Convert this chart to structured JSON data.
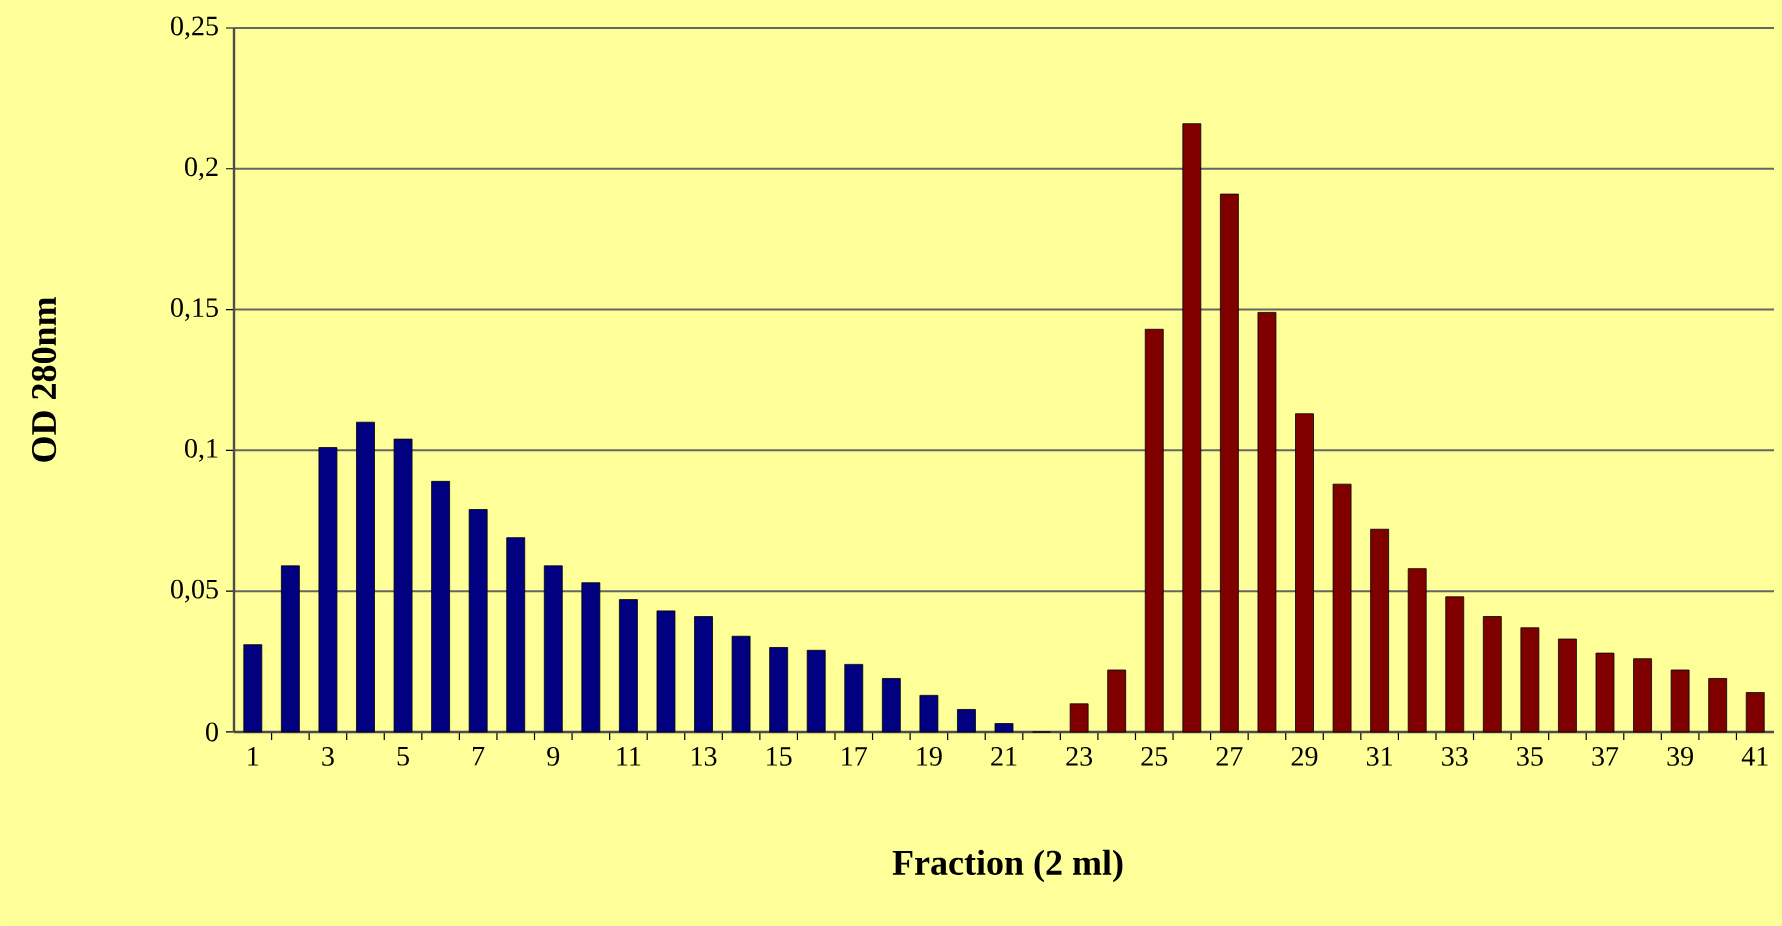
{
  "chart_data": {
    "type": "bar",
    "xlabel": "Fraction (2 ml)",
    "ylabel": "OD 280nm",
    "categories": [
      "1",
      null,
      "3",
      null,
      "5",
      null,
      "7",
      null,
      "9",
      null,
      "11",
      null,
      "13",
      null,
      "15",
      null,
      "17",
      null,
      "19",
      null,
      "21",
      null,
      "23",
      null,
      "25",
      null,
      "27",
      null,
      "29",
      null,
      "31",
      null,
      "33",
      null,
      "35",
      null,
      "37",
      null,
      "39",
      null,
      "41"
    ],
    "values": [
      0.031,
      0.059,
      0.101,
      0.11,
      0.104,
      0.089,
      0.079,
      0.069,
      0.059,
      0.053,
      0.047,
      0.043,
      0.041,
      0.034,
      0.03,
      0.029,
      0.024,
      0.019,
      0.013,
      0.008,
      0.003,
      0,
      0.01,
      0.022,
      0.143,
      0.216,
      0.191,
      0.149,
      0.113,
      0.088,
      0.072,
      0.058,
      0.048,
      0.041,
      0.037,
      0.033,
      0.028,
      0.026,
      0.022,
      0.019,
      0.014
    ],
    "colors": [
      "#000080",
      "#000080",
      "#000080",
      "#000080",
      "#000080",
      "#000080",
      "#000080",
      "#000080",
      "#000080",
      "#000080",
      "#000080",
      "#000080",
      "#000080",
      "#000080",
      "#000080",
      "#000080",
      "#000080",
      "#000080",
      "#000080",
      "#000080",
      "#000080",
      "#000080",
      "#800000",
      "#800000",
      "#800000",
      "#800000",
      "#800000",
      "#800000",
      "#800000",
      "#800000",
      "#800000",
      "#800000",
      "#800000",
      "#800000",
      "#800000",
      "#800000",
      "#800000",
      "#800000",
      "#800000",
      "#800000",
      "#800000"
    ],
    "ylim": [
      0,
      0.25
    ],
    "yticks": [
      {
        "value": 0,
        "label": "0"
      },
      {
        "value": 0.05,
        "label": "0,05"
      },
      {
        "value": 0.1,
        "label": "0,1"
      },
      {
        "value": 0.15,
        "label": "0,15"
      },
      {
        "value": 0.2,
        "label": "0,2"
      },
      {
        "value": 0.25,
        "label": "0,25"
      }
    ],
    "grid": "y"
  }
}
